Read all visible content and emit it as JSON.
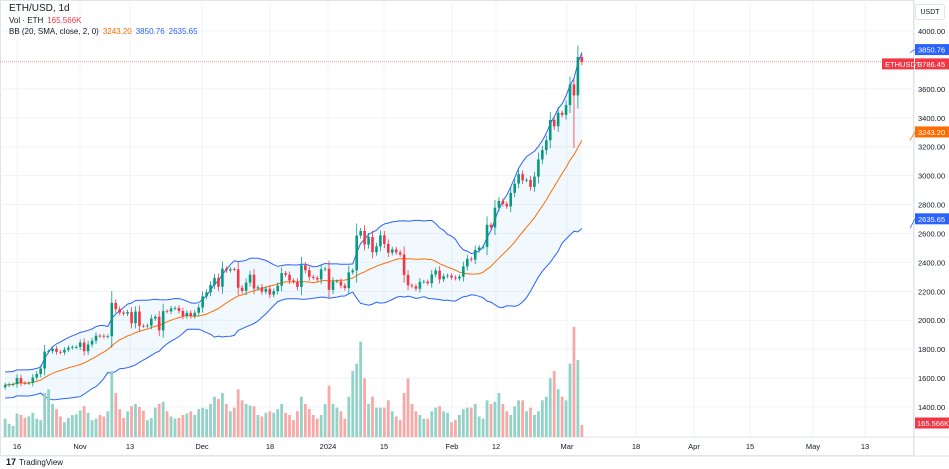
{
  "header": {
    "symbol": "ETH/USD, 1d",
    "vol_label": "Vol · ETH",
    "vol_value": "165.566K",
    "bb_label": "BB (20, SMA, close, 2, 0)",
    "bb_basis": "3243.20",
    "bb_upper": "3850.76",
    "bb_lower": "2635.65"
  },
  "price_axis": {
    "unit": "USDT",
    "ticks": [
      "4000.00",
      "3600.00",
      "3400.00",
      "3200.00",
      "3000.00",
      "2800.00",
      "2600.00",
      "2400.00",
      "2200.00",
      "2000.00",
      "1800.00",
      "1600.00",
      "1400.00"
    ],
    "labels": {
      "upper": "3850.76",
      "symbol": "ETHUSDT",
      "last": "3786.45",
      "basis": "3243.20",
      "lower": "2635.65",
      "volume": "165.566K"
    }
  },
  "time_axis": {
    "ticks": [
      "16",
      "Nov",
      "13",
      "Dec",
      "18",
      "2024",
      "15",
      "Feb",
      "12",
      "Mar",
      "18",
      "Apr",
      "15",
      "May",
      "13"
    ]
  },
  "colors": {
    "up": "#089981",
    "down": "#f23645",
    "bb_basis": "#ff6d00",
    "bb_band": "#2962ff",
    "last_price": "#f23645"
  },
  "footer": {
    "brand": "TradingView"
  },
  "chart_data": {
    "type": "candlestick",
    "start_date": "2023-10-13",
    "interval": "1d",
    "ylim": [
      1300,
      4050
    ],
    "close": [
      1552,
      1556,
      1558,
      1601,
      1566,
      1565,
      1566,
      1604,
      1628,
      1666,
      1783,
      1786,
      1803,
      1781,
      1777,
      1796,
      1810,
      1814,
      1815,
      1846,
      1786,
      1832,
      1858,
      1893,
      1892,
      1887,
      1890,
      2120,
      2077,
      2053,
      2045,
      2056,
      1979,
      2060,
      1961,
      1960,
      1963,
      2012,
      2024,
      1930,
      2063,
      2061,
      2081,
      2085,
      2064,
      2029,
      2051,
      2029,
      2052,
      2088,
      2165,
      2193,
      2243,
      2293,
      2232,
      2357,
      2344,
      2353,
      2352,
      2225,
      2203,
      2260,
      2315,
      2220,
      2228,
      2197,
      2218,
      2177,
      2201,
      2239,
      2326,
      2314,
      2275,
      2267,
      2230,
      2380,
      2346,
      2300,
      2293,
      2282,
      2352,
      2356,
      2210,
      2268,
      2269,
      2240,
      2222,
      2331,
      2344,
      2585,
      2617,
      2523,
      2576,
      2471,
      2511,
      2587,
      2528,
      2467,
      2490,
      2469,
      2455,
      2313,
      2241,
      2235,
      2218,
      2265,
      2267,
      2256,
      2317,
      2344,
      2283,
      2304,
      2309,
      2296,
      2289,
      2301,
      2372,
      2425,
      2419,
      2486,
      2503,
      2507,
      2660,
      2642,
      2778,
      2825,
      2804,
      2787,
      2881,
      2945,
      3010,
      2967,
      2971,
      2922,
      2993,
      3112,
      3176,
      3244,
      3385,
      3341,
      3435,
      3420,
      3488,
      3630,
      3555,
      3820,
      3786.45
    ],
    "volume_k": [
      250,
      180,
      150,
      320,
      300,
      260,
      280,
      330,
      250,
      230,
      600,
      650,
      450,
      380,
      280,
      200,
      260,
      300,
      310,
      360,
      420,
      330,
      230,
      250,
      300,
      280,
      350,
      900,
      600,
      380,
      260,
      350,
      420,
      450,
      410,
      360,
      230,
      260,
      400,
      450,
      480,
      350,
      280,
      250,
      260,
      300,
      320,
      350,
      300,
      380,
      400,
      380,
      450,
      550,
      520,
      600,
      450,
      350,
      400,
      650,
      500,
      450,
      430,
      420,
      300,
      280,
      330,
      350,
      330,
      380,
      450,
      330,
      300,
      230,
      350,
      550,
      450,
      380,
      300,
      250,
      300,
      450,
      700,
      450,
      400,
      350,
      250,
      550,
      900,
      1000,
      1300,
      800,
      450,
      550,
      400,
      400,
      400,
      500,
      350,
      280,
      230,
      600,
      800,
      450,
      350,
      300,
      250,
      250,
      350,
      400,
      420,
      350,
      330,
      200,
      230,
      300,
      380,
      400,
      400,
      450,
      280,
      250,
      500,
      450,
      480,
      600,
      450,
      350,
      300,
      420,
      500,
      500,
      350,
      400,
      300,
      350,
      500,
      550,
      800,
      900,
      650,
      550,
      500,
      1000,
      1500,
      1050,
      165.566
    ],
    "indicators": {
      "bb": {
        "length": 20,
        "ma": "SMA",
        "source": "close",
        "mult": 2
      }
    },
    "grid": true
  }
}
